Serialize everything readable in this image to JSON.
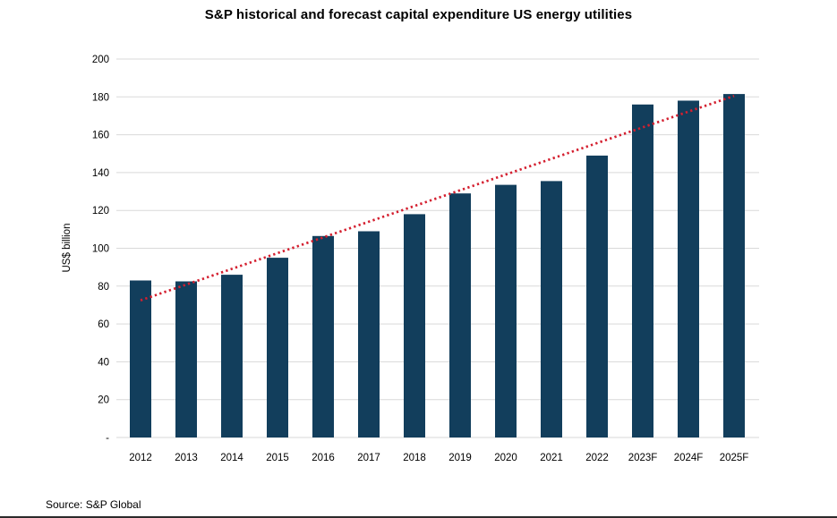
{
  "source_note": "Source: S&P Global",
  "colors": {
    "bar": "#123e5c",
    "trendline": "#d41f2f",
    "gridline": "#d9d9d9",
    "text": "#000000",
    "background": "#ffffff"
  },
  "chart_data": {
    "type": "bar",
    "title": "S&P historical and forecast capital expenditure US energy utilities",
    "xlabel": "",
    "ylabel": "US$ billion",
    "ylim": [
      0,
      200
    ],
    "grid": true,
    "legend": "none",
    "categories": [
      "2012",
      "2013",
      "2014",
      "2015",
      "2016",
      "2017",
      "2018",
      "2019",
      "2020",
      "2021",
      "2022",
      "2023F",
      "2024F",
      "2025F"
    ],
    "values": [
      83,
      82.5,
      86,
      95,
      106.5,
      109,
      118,
      129,
      133.5,
      135.5,
      149,
      176,
      178,
      181.5
    ],
    "ytick_values": [
      0,
      20,
      40,
      60,
      80,
      100,
      120,
      140,
      160,
      180,
      200
    ],
    "ytick_labels": [
      "-",
      "20",
      "40",
      "60",
      "80",
      "100",
      "120",
      "140",
      "160",
      "180",
      "200"
    ],
    "trendline": {
      "style": "dotted",
      "color": "#d41f2f",
      "start_category": "2012",
      "start_value": 72.5,
      "end_category": "2025F",
      "end_value": 180.5
    }
  }
}
